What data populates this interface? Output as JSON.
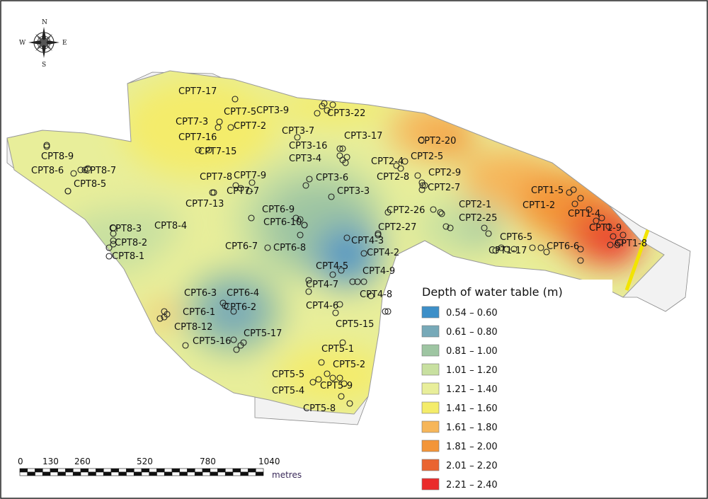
{
  "compass": {
    "n": "N",
    "s": "S",
    "e": "E",
    "w": "W",
    "icon": "compass-rose-icon"
  },
  "scale_bar": {
    "ticks": [
      "0",
      "130",
      "260",
      "520",
      "780",
      "1040"
    ],
    "unit": "metres"
  },
  "legend": {
    "title": "Depth of water table (m)",
    "classes": [
      {
        "label": "0.54 – 0.60",
        "color": "#3d8fc8"
      },
      {
        "label": "0.61 – 0.80",
        "color": "#77a9b8"
      },
      {
        "label": "0.81 – 1.00",
        "color": "#9ec5a2"
      },
      {
        "label": "1.01 – 1.20",
        "color": "#c8e0a0"
      },
      {
        "label": "1.21 – 1.40",
        "color": "#e8ee9a"
      },
      {
        "label": "1.41 – 1.60",
        "color": "#f4ec6a"
      },
      {
        "label": "1.61 – 1.80",
        "color": "#f6b65a"
      },
      {
        "label": "1.81 – 2.00",
        "color": "#f39538"
      },
      {
        "label": "2.01 – 2.20",
        "color": "#ea6430"
      },
      {
        "label": "2.21 – 2.40",
        "color": "#ea2b2b"
      }
    ]
  },
  "cpt_labels": [
    "CPT7-17",
    "CPT7-5",
    "CPT3-9",
    "CPT3-22",
    "CPT7-3",
    "CPT7-2",
    "CPT3-7",
    "CPT3-17",
    "CPT2-20",
    "CPT7-16",
    "CPT3-16",
    "CPT7-15",
    "CPT3-4",
    "CPT2-5",
    "CPT2-4",
    "CPT8-9",
    "CPT8-6",
    "CPT8-7",
    "CPT7-8",
    "CPT7-9",
    "CPT3-6",
    "CPT2-8",
    "CPT2-9",
    "CPT8-5",
    "CPT2-7",
    "CPT7-7",
    "CPT3-3",
    "CPT1-5",
    "CPT7-13",
    "CPT2-1",
    "CPT1-2",
    "CPT6-9",
    "CPT2-26",
    "CPT2-25",
    "CPT1-4",
    "CPT8-3",
    "CPT8-4",
    "CPT6-10",
    "CPT2-27",
    "CPT1-9",
    "CPT4-3",
    "CPT6-5",
    "CPT8-2",
    "CPT6-7",
    "CPT6-8",
    "CPT4-2",
    "CPT6-6",
    "CPT1-8",
    "CPT1-17",
    "CPT8-1",
    "CPT4-5",
    "CPT4-9",
    "CPT4-7",
    "CPT4-8",
    "CPT6-3",
    "CPT6-4",
    "CPT6-2",
    "CPT6-1",
    "CPT4-6",
    "CPT5-15",
    "CPT8-12",
    "CPT5-17",
    "CPT5-16",
    "CPT5-1",
    "CPT5-2",
    "CPT5-5",
    "CPT5-9",
    "CPT5-4",
    "CPT5-8"
  ]
}
